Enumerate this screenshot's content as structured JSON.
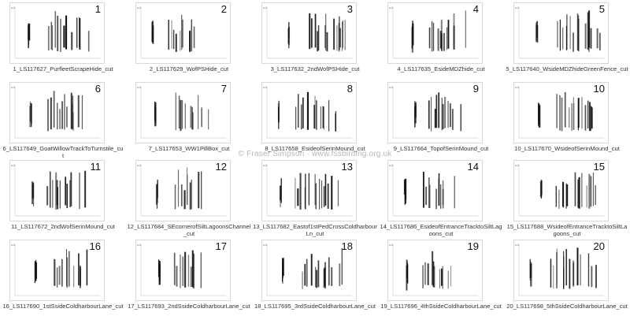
{
  "watermark": "© Fraser Simpson  ·  www.fssbirding.org.uk",
  "axis_label": "kHz",
  "thumbnails": [
    {
      "number": "1",
      "caption": [
        "1_LS117627_PurfleetScrapeHide_cut"
      ]
    },
    {
      "number": "2",
      "caption": [
        "2_LS117629_WofPSHide_cut"
      ]
    },
    {
      "number": "3",
      "caption": [
        "3_LS117632_2ndWofPSHide_cut"
      ]
    },
    {
      "number": "4",
      "caption": [
        "4_LS117635_EsideMDZhide_cut"
      ]
    },
    {
      "number": "5",
      "caption": [
        "5_LS117640_WsideMDZhideGreenFence_cut"
      ]
    },
    {
      "number": "6",
      "caption": [
        "6_LS117649_GoatWillowTrackToTurnstile_cu",
        "t"
      ]
    },
    {
      "number": "7",
      "caption": [
        "7_LS117653_WW1PillBox_cut"
      ]
    },
    {
      "number": "8",
      "caption": [
        "8_LS117658_EsideofSerinMound_cut"
      ]
    },
    {
      "number": "9",
      "caption": [
        "9_LS117664_TopofSerinMound_cut"
      ]
    },
    {
      "number": "10",
      "caption": [
        "10_LS117670_WsideofSerinMound_cut"
      ]
    },
    {
      "number": "11",
      "caption": [
        "11_LS117672_2ndWofSerinMound_cut"
      ]
    },
    {
      "number": "12",
      "caption": [
        "12_LS117684_SEcornerofSiltLagoonsChannel",
        "_cut"
      ]
    },
    {
      "number": "13",
      "caption": [
        "13_LS117682_Eastof1stPedCrossColdharbour",
        "Ln_cut"
      ]
    },
    {
      "number": "14",
      "caption": [
        "14_LS117686_EsideofEntranceTracktoSiltLag",
        "oons_cut"
      ]
    },
    {
      "number": "15",
      "caption": [
        "15_LS117688_WsideofEntranceTracktoSiltLa",
        "goons_cut"
      ]
    },
    {
      "number": "16",
      "caption": [
        "16_LS117690_1stSsideColdharbourLane_cut"
      ]
    },
    {
      "number": "17",
      "caption": [
        "17_LS117693_2ndSsideColdharbourLane_cut"
      ]
    },
    {
      "number": "18",
      "caption": [
        "18_LS117695_3rdSsideColdharbourLane_cut"
      ]
    },
    {
      "number": "19",
      "caption": [
        "19_LS117696_4thSsideColdharbourLane_cut"
      ]
    },
    {
      "number": "20",
      "caption": [
        "20_LS117698_5thSsideColdharbourLane_cut"
      ]
    }
  ]
}
